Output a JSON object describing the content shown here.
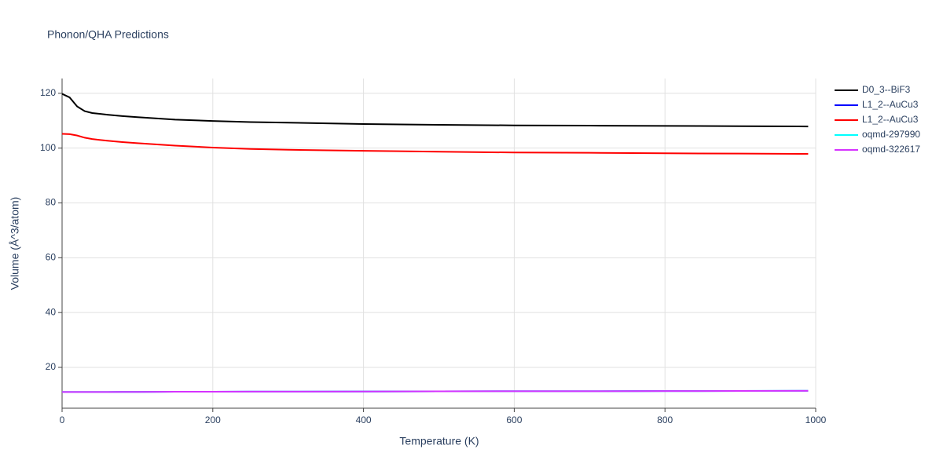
{
  "chart_data": {
    "type": "line",
    "title": "Phonon/QHA Predictions",
    "x_label": "Temperature (K)",
    "y_label": "Volume (Å^3/atom)",
    "x": [
      0,
      10,
      20,
      30,
      40,
      60,
      80,
      100,
      150,
      200,
      250,
      300,
      400,
      500,
      600,
      700,
      800,
      900,
      990
    ],
    "series": [
      {
        "name": "D0_3--BiF3",
        "color": "#000000",
        "values": [
          119.8,
          118.5,
          115.2,
          113.5,
          112.8,
          112.2,
          111.7,
          111.3,
          110.4,
          109.9,
          109.5,
          109.3,
          108.8,
          108.5,
          108.3,
          108.2,
          108.1,
          108.0,
          107.9
        ]
      },
      {
        "name": "L1_2--AuCu3",
        "color": "#0000ff",
        "values": [
          11.0,
          11.0,
          11.0,
          11.0,
          11.0,
          11.0,
          11.05,
          11.05,
          11.1,
          11.1,
          11.15,
          11.15,
          11.2,
          11.25,
          11.3,
          11.3,
          11.35,
          11.4,
          11.45
        ]
      },
      {
        "name": "L1_2--AuCu3",
        "color": "#ff0000",
        "values": [
          105.2,
          105.1,
          104.6,
          103.8,
          103.3,
          102.7,
          102.2,
          101.8,
          100.9,
          100.2,
          99.7,
          99.4,
          99.0,
          98.7,
          98.4,
          98.3,
          98.1,
          98.0,
          97.9
        ]
      },
      {
        "name": "oqmd-297990",
        "color": "#00ffff",
        "values": [
          11.0,
          11.0,
          11.0,
          11.0,
          11.0,
          11.0,
          11.05,
          11.05,
          11.1,
          11.1,
          11.15,
          11.15,
          11.2,
          11.25,
          11.3,
          11.3,
          11.35,
          11.4,
          11.45
        ]
      },
      {
        "name": "oqmd-322617",
        "color": "#d633ff",
        "values": [
          11.0,
          11.0,
          11.0,
          11.0,
          11.0,
          11.0,
          11.05,
          11.05,
          11.1,
          11.1,
          11.15,
          11.15,
          11.2,
          11.25,
          11.3,
          11.3,
          11.35,
          11.4,
          11.45
        ]
      }
    ],
    "xlim": [
      0,
      1000
    ],
    "xticks": [
      0,
      200,
      400,
      600,
      800,
      1000
    ],
    "ylim": [
      5.1,
      125.4
    ],
    "yticks": [
      20,
      40,
      60,
      80,
      100,
      120
    ],
    "grid": true,
    "legend": "right"
  }
}
